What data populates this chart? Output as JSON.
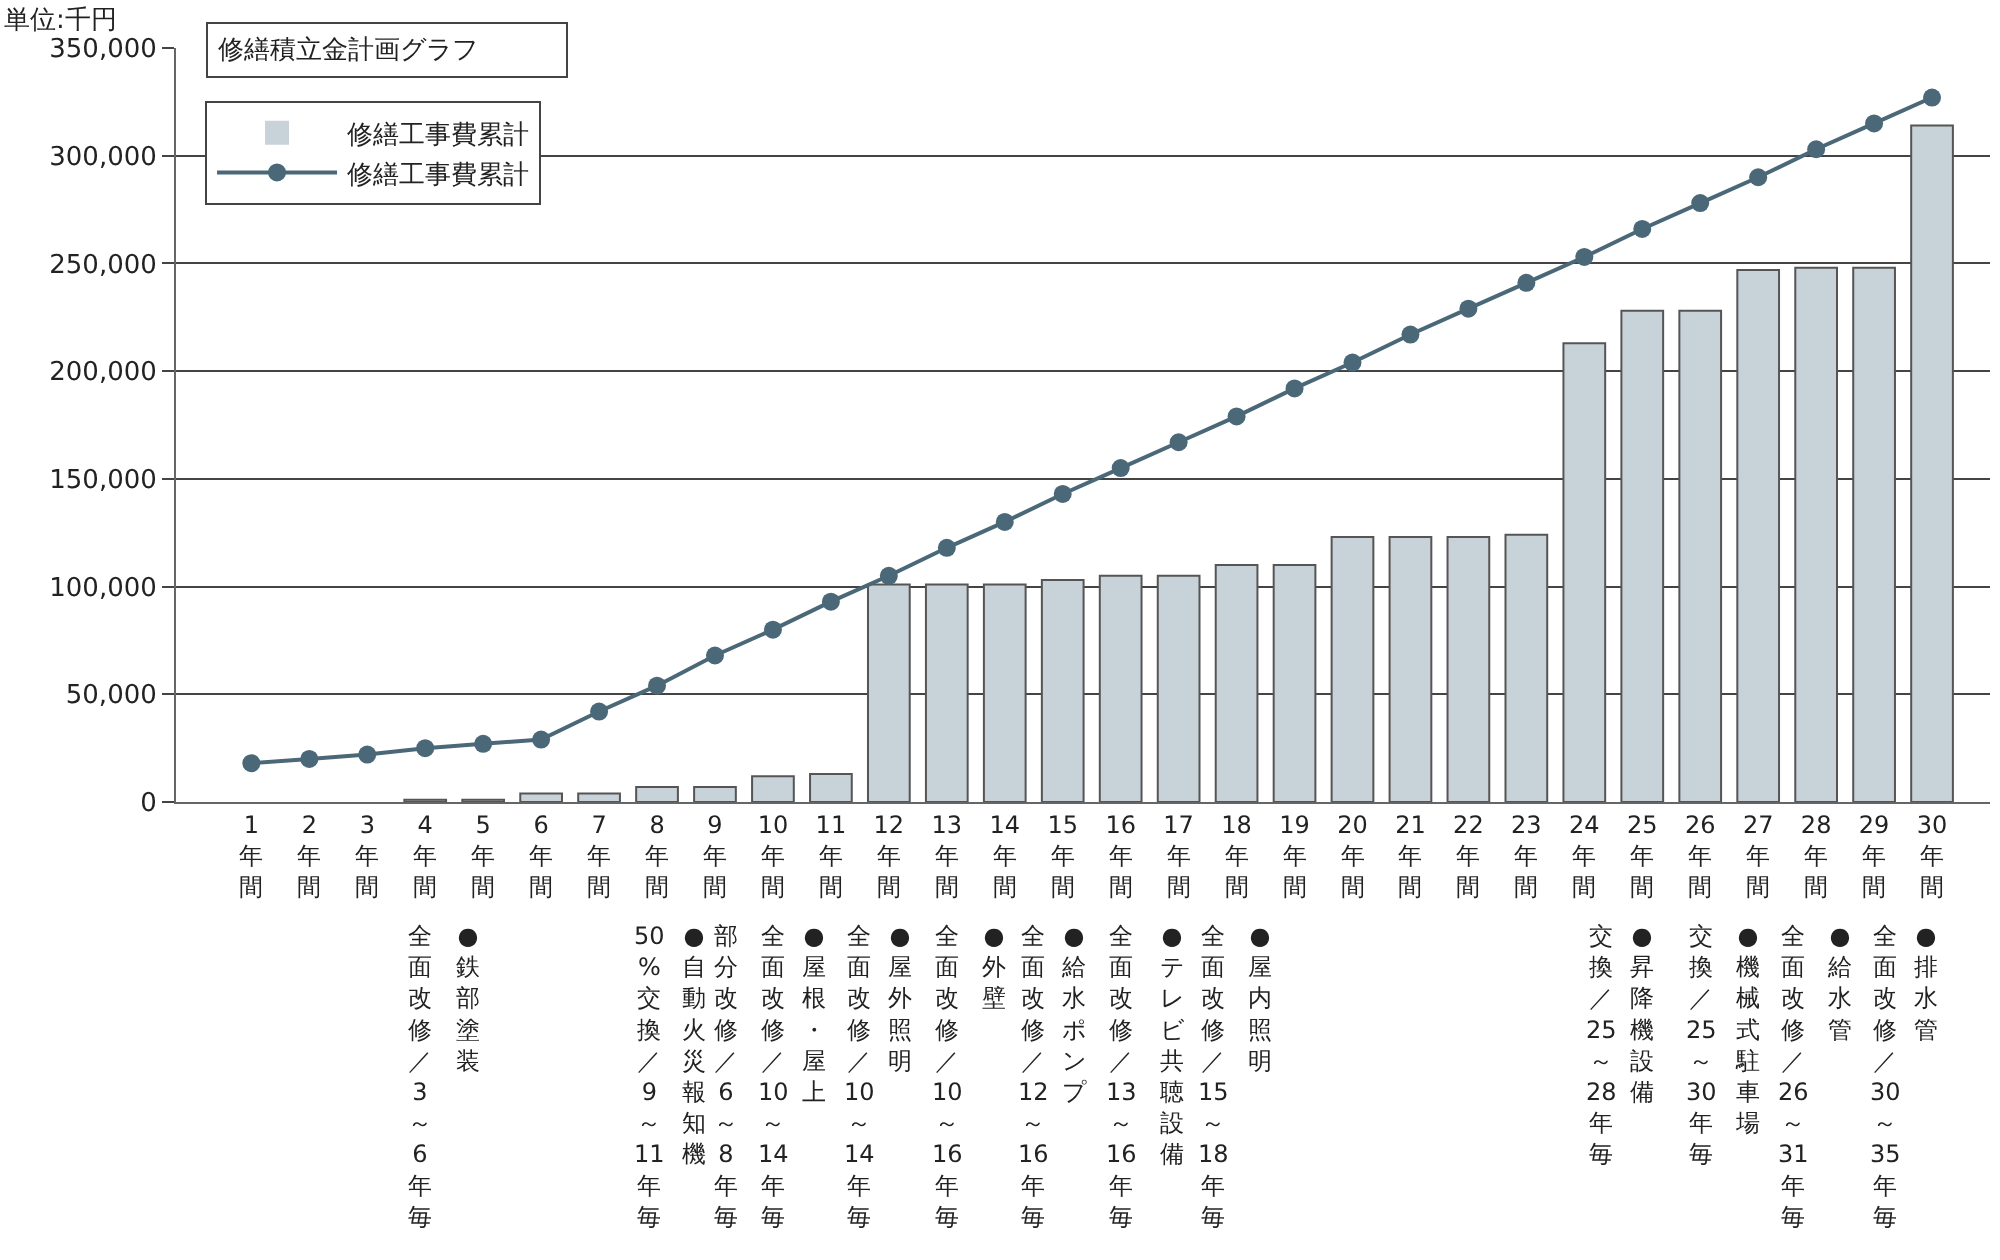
{
  "chart_data": {
    "type": "bar",
    "title": "修繕積立金計画グラフ",
    "ylabel": "単位:千円",
    "categories": [
      "1年間",
      "2年間",
      "3年間",
      "4年間",
      "5年間",
      "6年間",
      "7年間",
      "8年間",
      "9年間",
      "10年間",
      "11年間",
      "12年間",
      "13年間",
      "14年間",
      "15年間",
      "16年間",
      "17年間",
      "18年間",
      "19年間",
      "20年間",
      "21年間",
      "22年間",
      "23年間",
      "24年間",
      "25年間",
      "26年間",
      "27年間",
      "28年間",
      "29年間",
      "30年間"
    ],
    "series": [
      {
        "name": "修繕工事費累計",
        "color": "#c8d2d9",
        "values": [
          0,
          0,
          0,
          1000,
          1000,
          4000,
          4000,
          7000,
          7000,
          12000,
          13000,
          101000,
          101000,
          101000,
          103000,
          105000,
          105000,
          110000,
          110000,
          123000,
          123000,
          123000,
          124000,
          213000,
          228000,
          228000,
          247000,
          248000,
          248000,
          314000
        ]
      },
      {
        "name": "修繕工事費累計",
        "type": "line",
        "color": "#4a6878",
        "marker": "circle",
        "values": [
          18000,
          20000,
          22000,
          25000,
          27000,
          29000,
          42000,
          54000,
          68000,
          80000,
          93000,
          105000,
          118000,
          130000,
          143000,
          155000,
          167000,
          179000,
          192000,
          204000,
          217000,
          229000,
          241000,
          253000,
          266000,
          278000,
          290000,
          303000,
          315000,
          327000
        ]
      }
    ],
    "ylim": [
      0,
      350000
    ],
    "yticks": [
      0,
      {
        "value": 50000,
        "label": "50,000"
      },
      {
        "value": 100000,
        "label": "100,000"
      },
      {
        "value": 150000,
        "label": "150,000"
      },
      {
        "value": 200000,
        "label": "200,000"
      },
      {
        "value": 250000,
        "label": "250,000"
      },
      {
        "value": 300000,
        "label": "300,000"
      },
      {
        "value": 350000,
        "label": "350,000"
      }
    ],
    "grid": "y",
    "legend": "top left",
    "annotations": [
      "全面改修／3～6年毎",
      "●鉄部塗装",
      "50%交換／9～11年毎",
      "●自動火災報知機",
      "部分改修／6～8年毎",
      "全面改修／10～14年毎",
      "●屋根・屋上",
      "全面改修／10～14年毎",
      "●屋外照明",
      "全面改修／10～16年毎",
      "●外壁",
      "全面改修／12～16年毎",
      "●給水ポンプ",
      "全面改修／13～16年毎",
      "●テレビ共聴設備",
      "全面改修／15～18年毎",
      "●屋内照明",
      "交換／25～28年毎",
      "●昇降機設備",
      "交換／25～30年毎",
      "●機械式駐車場",
      "全面改修／26～31年毎",
      "●給水管",
      "全面改修／30～35年毎",
      "●排水管"
    ]
  }
}
